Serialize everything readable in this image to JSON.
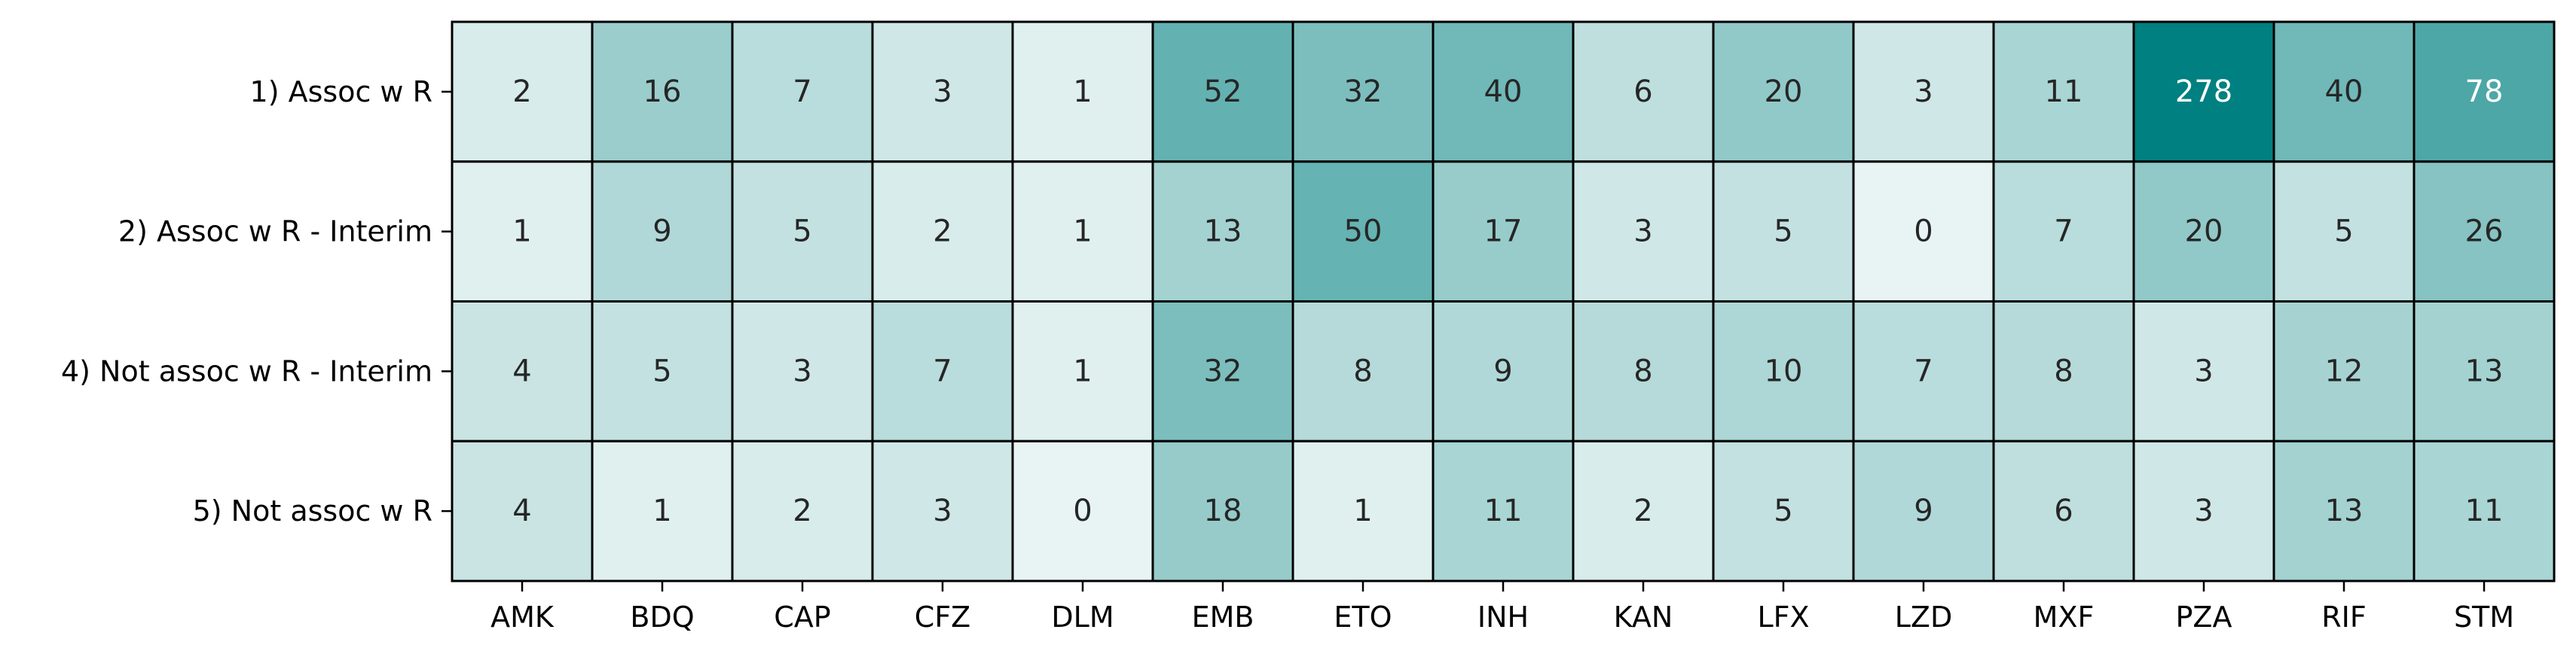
{
  "chart_data": {
    "type": "heatmap",
    "title": "",
    "xlabel": "",
    "ylabel": "",
    "x_categories": [
      "AMK",
      "BDQ",
      "CAP",
      "CFZ",
      "DLM",
      "EMB",
      "ETO",
      "INH",
      "KAN",
      "LFX",
      "LZD",
      "MXF",
      "PZA",
      "RIF",
      "STM"
    ],
    "y_categories": [
      "1) Assoc w R",
      "2) Assoc w R - Interim",
      "4) Not assoc w R - Interim",
      "5) Not assoc w R"
    ],
    "values": [
      [
        2,
        16,
        7,
        3,
        1,
        52,
        32,
        40,
        6,
        20,
        3,
        11,
        278,
        40,
        78
      ],
      [
        1,
        9,
        5,
        2,
        1,
        13,
        50,
        17,
        3,
        5,
        0,
        7,
        20,
        5,
        26
      ],
      [
        4,
        5,
        3,
        7,
        1,
        32,
        8,
        9,
        8,
        10,
        7,
        8,
        3,
        12,
        13
      ],
      [
        4,
        1,
        2,
        3,
        0,
        18,
        1,
        11,
        2,
        5,
        9,
        6,
        3,
        13,
        11
      ]
    ],
    "grid": true,
    "legend": "none",
    "colors": {
      "low": "#e8f4f3",
      "high": "#008080",
      "text_dark": "#262626",
      "text_light": "#ffffff",
      "border": "#000000"
    }
  }
}
